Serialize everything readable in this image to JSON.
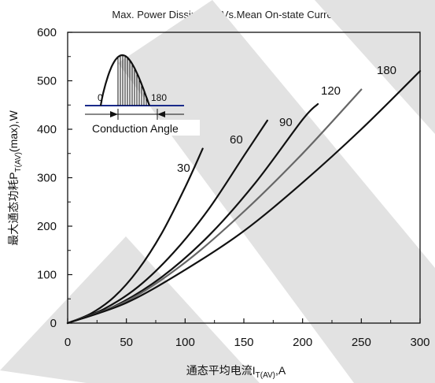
{
  "chart_data": {
    "type": "line",
    "title": "Max. Power Dissipation Vs.Mean On-state Current",
    "xlabel": "通态平均电流I",
    "xlabel_sub": "T(AV)",
    "xlabel_unit": ",A",
    "ylabel": "最大通态功耗P",
    "ylabel_sub": "T(AV)",
    "ylabel_unit": "(max),W",
    "xlim": [
      0,
      300
    ],
    "ylim": [
      0,
      600
    ],
    "xticks": [
      "0",
      "50",
      "100",
      "150",
      "200",
      "250",
      "300"
    ],
    "yticks": [
      "0",
      "100",
      "200",
      "300",
      "400",
      "500",
      "600"
    ],
    "grid": false,
    "series": [
      {
        "name": "30",
        "x": [
          0,
          20,
          40,
          60,
          80,
          100,
          115
        ],
        "y": [
          0,
          20,
          55,
          110,
          185,
          280,
          360
        ]
      },
      {
        "name": "60",
        "x": [
          0,
          30,
          60,
          90,
          120,
          150,
          170
        ],
        "y": [
          0,
          28,
          75,
          145,
          235,
          345,
          418
        ]
      },
      {
        "name": "90",
        "x": [
          0,
          40,
          80,
          120,
          160,
          200,
          213
        ],
        "y": [
          0,
          35,
          95,
          180,
          290,
          420,
          452
        ]
      },
      {
        "name": "120",
        "x": [
          0,
          50,
          100,
          150,
          200,
          250
        ],
        "y": [
          0,
          45,
          125,
          230,
          350,
          482
        ]
      },
      {
        "name": "180",
        "x": [
          0,
          50,
          100,
          150,
          200,
          250,
          300
        ],
        "y": [
          0,
          42,
          110,
          190,
          290,
          400,
          520
        ]
      }
    ],
    "series_colors": [
      "#111111",
      "#111111",
      "#111111",
      "#666666",
      "#111111"
    ],
    "inset": {
      "label_start": "0",
      "label_end": "180",
      "caption": "Conduction Angle"
    }
  }
}
